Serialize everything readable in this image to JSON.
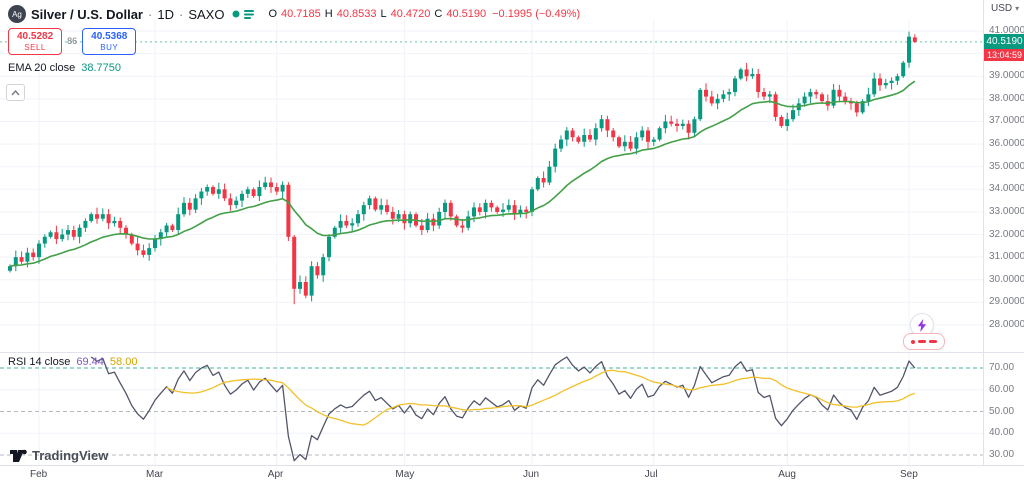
{
  "header": {
    "symbol": "Silver / U.S. Dollar",
    "sep": "·",
    "timeframe": "1D",
    "exchange": "SAXO",
    "ohlc": {
      "o_label": "O",
      "o": "40.7185",
      "h_label": "H",
      "h": "40.8533",
      "l_label": "L",
      "l": "40.4720",
      "c_label": "C",
      "c": "40.5190",
      "change": "−0.1995 (−0.49%)"
    }
  },
  "trade": {
    "sell_price": "40.5282",
    "sell_label": "SELL",
    "spread": "86",
    "buy_price": "40.5368",
    "buy_label": "BUY"
  },
  "indicators": {
    "ema_label": "EMA 20 close",
    "ema_value": "38.7750",
    "rsi_label": "RSI 14 close",
    "rsi_value": "69.44",
    "rsi_ma_value": "58.00"
  },
  "axis": {
    "currency": "USD",
    "caret": "▾",
    "price_label": "40.5190",
    "countdown": "13:04:59",
    "price_ticks": [
      "41.0000",
      "40.0000",
      "39.0000",
      "38.0000",
      "37.0000",
      "36.0000",
      "35.0000",
      "34.0000",
      "33.0000",
      "32.0000",
      "31.0000",
      "30.0000",
      "29.0000",
      "28.0000"
    ],
    "rsi_ticks": [
      "70.00",
      "60.00",
      "50.00",
      "40.00",
      "30.00"
    ],
    "months": [
      {
        "label": "Feb",
        "i": 5
      },
      {
        "label": "Mar",
        "i": 25
      },
      {
        "label": "Apr",
        "i": 46
      },
      {
        "label": "May",
        "i": 68
      },
      {
        "label": "Jun",
        "i": 90
      },
      {
        "label": "Jul",
        "i": 111
      },
      {
        "label": "Aug",
        "i": 134
      },
      {
        "label": "Sep",
        "i": 155
      }
    ]
  },
  "logo": {
    "text": "TradingView"
  },
  "colors": {
    "up": "#089981",
    "down": "#f23645",
    "ema": "#43a047",
    "rsi_line": "#52566a",
    "rsi_ma": "#f2c029",
    "band_teal": "#089981",
    "band_gray": "#b6b9c2",
    "grid": "#f0f3fa",
    "axis_text": "#787b86",
    "sell": "#f23645",
    "buy": "#2962ff",
    "accent_purple": "#9334ea"
  },
  "chart_data": {
    "type": "candlestick",
    "title": "Silver / U.S. Dollar, 1D, SAXO",
    "xlabel": "",
    "ylabel": "USD",
    "y_range": [
      28,
      41
    ],
    "grid": true,
    "ema_period": 20,
    "rsi_period": 14,
    "rsi_ma_period": 14,
    "rsi_bands": [
      70,
      50,
      30
    ],
    "first_open": 30.4,
    "closes": [
      30.6,
      31.0,
      30.8,
      31.2,
      31.0,
      31.6,
      31.9,
      32.1,
      31.8,
      32.0,
      32.2,
      31.9,
      32.3,
      32.6,
      32.9,
      32.7,
      32.9,
      32.5,
      32.6,
      32.3,
      32.0,
      31.6,
      31.3,
      31.1,
      31.4,
      31.8,
      32.1,
      32.4,
      32.2,
      32.9,
      33.4,
      33.1,
      33.6,
      33.9,
      34.1,
      33.8,
      34.0,
      33.6,
      33.3,
      33.5,
      33.8,
      34.0,
      33.7,
      34.1,
      34.3,
      34.1,
      33.9,
      34.2,
      31.9,
      29.6,
      29.9,
      29.3,
      30.6,
      30.2,
      31.0,
      31.9,
      32.3,
      32.6,
      32.4,
      32.5,
      32.9,
      33.3,
      33.6,
      33.1,
      33.3,
      33.0,
      32.7,
      32.9,
      32.5,
      32.9,
      32.4,
      32.2,
      32.7,
      32.4,
      33.0,
      33.4,
      32.8,
      32.4,
      32.3,
      32.8,
      33.2,
      33.0,
      33.4,
      33.2,
      33.0,
      33.1,
      33.3,
      32.9,
      33.1,
      33.0,
      34.0,
      34.5,
      34.3,
      35.0,
      35.8,
      36.2,
      36.6,
      36.3,
      36.1,
      36.4,
      36.2,
      36.7,
      37.1,
      36.6,
      36.3,
      35.9,
      36.1,
      35.8,
      36.3,
      36.6,
      36.1,
      36.2,
      36.7,
      37.0,
      36.9,
      36.8,
      36.9,
      36.5,
      37.1,
      38.4,
      38.1,
      37.8,
      38.0,
      38.2,
      38.3,
      38.9,
      39.3,
      39.0,
      39.1,
      38.3,
      38.1,
      38.2,
      37.2,
      36.8,
      37.1,
      37.5,
      37.8,
      38.1,
      38.3,
      38.2,
      37.9,
      37.7,
      38.4,
      38.1,
      37.9,
      37.8,
      37.4,
      37.9,
      38.2,
      38.9,
      38.6,
      38.7,
      38.8,
      39.0,
      39.6,
      40.75,
      40.519
    ],
    "wick_overrides": {
      "49": {
        "low": 28.92
      },
      "155": {
        "high": 40.97
      }
    },
    "last_candle": {
      "open": 40.7185,
      "high": 40.8533,
      "low": 40.472,
      "close": 40.519
    }
  }
}
